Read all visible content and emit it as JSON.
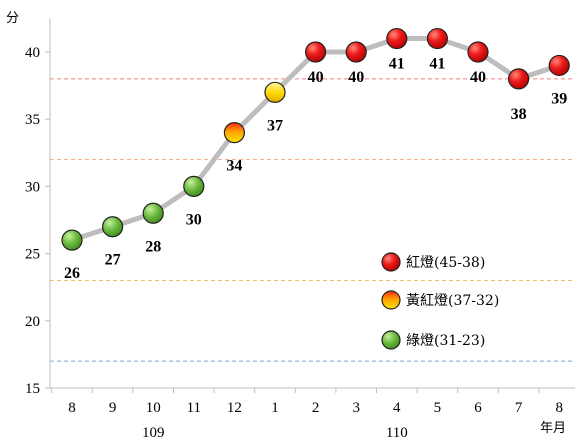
{
  "chart_data": {
    "type": "line",
    "title": "",
    "ylabel": "分",
    "xlabel": "年月",
    "ylim": [
      15,
      43
    ],
    "yticks": [
      15,
      20,
      25,
      30,
      35,
      40
    ],
    "x": [
      "8",
      "9",
      "10",
      "11",
      "12",
      "1",
      "2",
      "3",
      "4",
      "5",
      "6",
      "7",
      "8"
    ],
    "year_labels": [
      {
        "label": "109",
        "center_index": 2
      },
      {
        "label": "110",
        "center_index": 8
      }
    ],
    "values": [
      26,
      27,
      28,
      30,
      34,
      37,
      40,
      40,
      41,
      41,
      40,
      38,
      39
    ],
    "colors": {
      "line": "#bdbdbd",
      "green": "#5fb13a",
      "red": "#e8141a",
      "yellow": "#f5d000",
      "threshold_red": "#f08080",
      "threshold_orange": "#f4b183",
      "threshold_yellow": "#e6c36a",
      "threshold_blue": "#7fa7d6"
    },
    "thresholds": [
      {
        "value": 38,
        "color": "#f08080"
      },
      {
        "value": 32,
        "color": "#f4b183"
      },
      {
        "value": 23,
        "color": "#e6c36a"
      },
      {
        "value": 17,
        "color": "#7fa7d6"
      }
    ],
    "legend": [
      {
        "label": "紅燈(45-38)",
        "kind": "red"
      },
      {
        "label": "黃紅燈(37-32)",
        "kind": "yellow-red"
      },
      {
        "label": "綠燈(31-23)",
        "kind": "green"
      }
    ],
    "legend_position": "lower-right",
    "grid": false
  }
}
